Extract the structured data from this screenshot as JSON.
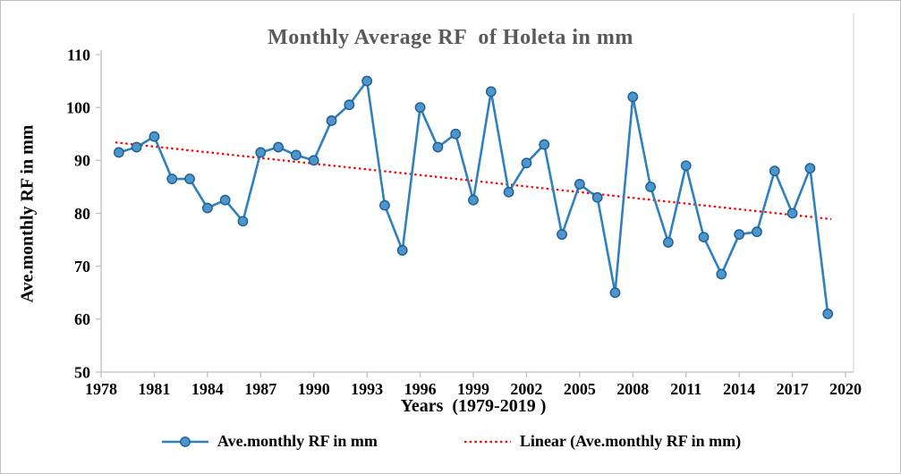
{
  "figure": {
    "background": "#ffffff",
    "border_color": "#bdbdbd"
  },
  "chart_data": {
    "type": "line",
    "title": "Monthly Average RF  of Holeta in mm",
    "title_color": "#595959",
    "xlabel": "Years  (1979-2019 )",
    "ylabel": "Ave.monthly RF in mm",
    "xlim": [
      1978,
      2020
    ],
    "ylim": [
      50,
      110
    ],
    "xticks": [
      1978,
      1981,
      1984,
      1987,
      1990,
      1993,
      1996,
      1999,
      2002,
      2005,
      2008,
      2011,
      2014,
      2017,
      2020
    ],
    "yticks": [
      50,
      60,
      70,
      80,
      90,
      100,
      110
    ],
    "grid": false,
    "legend_position": "bottom",
    "axis_color": "#bfbfbf",
    "plot_border_color": "#d9d9d9",
    "tick_label_color": "#000000",
    "x": [
      1979,
      1980,
      1981,
      1982,
      1983,
      1984,
      1985,
      1986,
      1987,
      1988,
      1989,
      1990,
      1991,
      1992,
      1993,
      1994,
      1995,
      1996,
      1997,
      1998,
      1999,
      2000,
      2001,
      2002,
      2003,
      2004,
      2005,
      2006,
      2007,
      2008,
      2009,
      2010,
      2011,
      2012,
      2013,
      2014,
      2015,
      2016,
      2017,
      2018,
      2019
    ],
    "series": [
      {
        "name": "Ave.monthly RF in mm",
        "type": "line-markers",
        "color": "#2e80be",
        "marker_fill": "#4c96cc",
        "marker_edge": "#1d5e93",
        "values": [
          91.5,
          92.5,
          94.5,
          86.5,
          86.5,
          81,
          82.5,
          78.5,
          91.5,
          92.5,
          91,
          90,
          97.5,
          100.5,
          105,
          81.5,
          73,
          100,
          92.5,
          95,
          82.5,
          103,
          84,
          89.5,
          93,
          76,
          85.5,
          83,
          65,
          102,
          85,
          74.5,
          89,
          75.5,
          68.5,
          76,
          76.5,
          88,
          80,
          88.5,
          61
        ]
      },
      {
        "name": "Linear (Ave.monthly RF in mm)",
        "type": "linear-trend",
        "color": "#ff0000",
        "style": "dotted",
        "start": {
          "x": 1978.8,
          "y": 93.4
        },
        "end": {
          "x": 2019.2,
          "y": 78.9
        }
      }
    ]
  }
}
